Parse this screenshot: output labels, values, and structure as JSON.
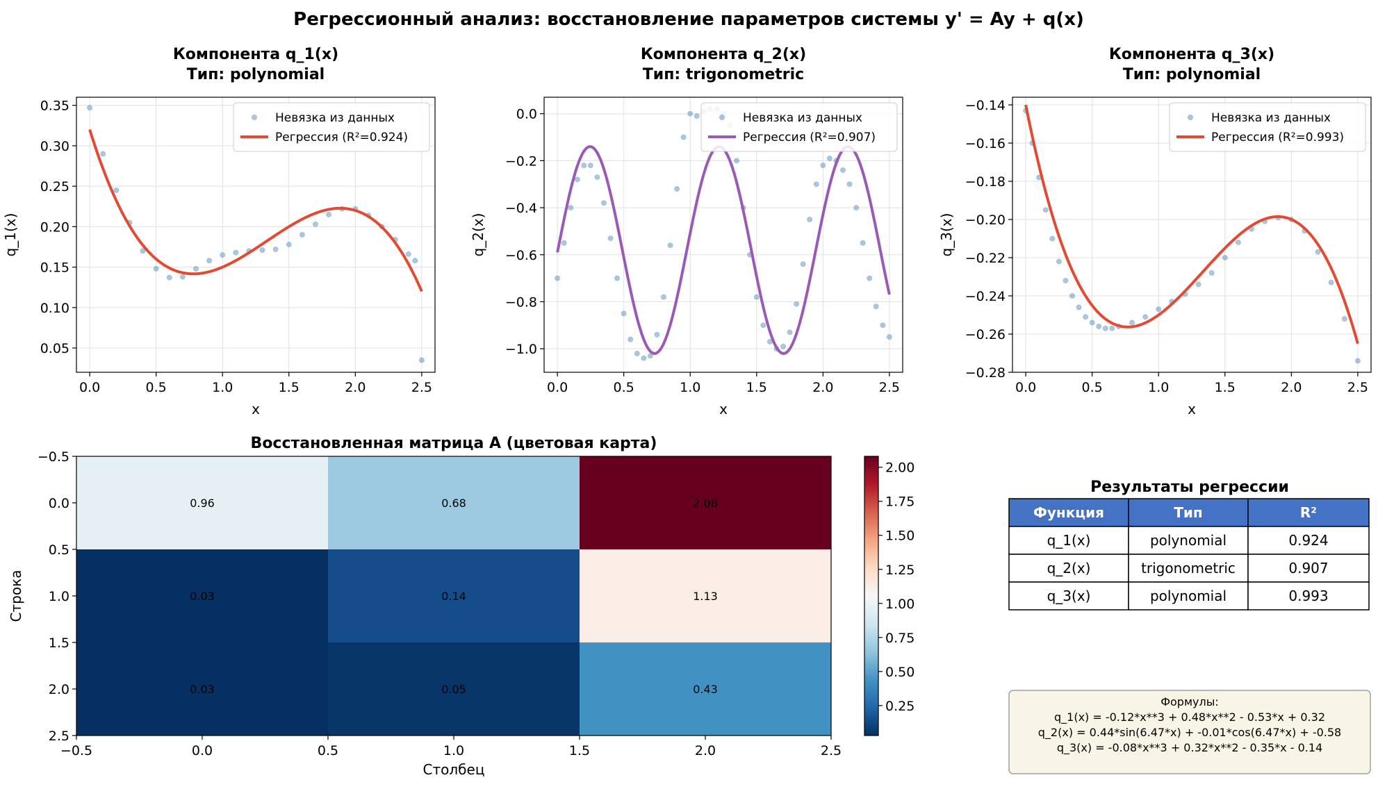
{
  "suptitle": "Регрессионный анализ: восстановление параметров системы y' = Ay + q(x)",
  "colors": {
    "data_points": "#4682b4",
    "red_fit": "#e24a33",
    "purple_fit": "#9b59b6",
    "table_header": "#4472c4",
    "formula_box": "#f8f4e6",
    "grid": "#e0e0e0"
  },
  "chart_data": [
    {
      "type": "scatter",
      "id": "q1",
      "title_line1": "Компонента q_1(x)",
      "title_line2": "Тип: polynomial",
      "xlabel": "x",
      "ylabel": "q_1(x)",
      "xlim": [
        -0.1,
        2.6
      ],
      "ylim": [
        0.02,
        0.36
      ],
      "xticks": [
        "0.0",
        "0.5",
        "1.0",
        "1.5",
        "2.0",
        "2.5"
      ],
      "xtick_values": [
        0.0,
        0.5,
        1.0,
        1.5,
        2.0,
        2.5
      ],
      "yticks": [
        "0.05",
        "0.10",
        "0.15",
        "0.20",
        "0.25",
        "0.30",
        "0.35"
      ],
      "ytick_values": [
        0.05,
        0.1,
        0.15,
        0.2,
        0.25,
        0.3,
        0.35
      ],
      "grid": true,
      "legend_position": "top-right",
      "fit_color": "#e24a33",
      "series": [
        {
          "name": "Невязка из данных",
          "kind": "scatter",
          "x": [
            0.0,
            0.1,
            0.2,
            0.3,
            0.4,
            0.5,
            0.6,
            0.7,
            0.8,
            0.9,
            1.0,
            1.1,
            1.2,
            1.3,
            1.4,
            1.5,
            1.6,
            1.7,
            1.8,
            1.9,
            2.0,
            2.1,
            2.2,
            2.3,
            2.4,
            2.45,
            2.5
          ],
          "y": [
            0.347,
            0.29,
            0.245,
            0.205,
            0.17,
            0.148,
            0.137,
            0.138,
            0.148,
            0.158,
            0.165,
            0.168,
            0.17,
            0.171,
            0.172,
            0.178,
            0.19,
            0.203,
            0.215,
            0.222,
            0.222,
            0.214,
            0.2,
            0.184,
            0.166,
            0.158,
            0.035
          ]
        },
        {
          "name": "Регрессия (R²=0.924)",
          "kind": "line",
          "coefficients": [
            -0.12,
            0.48,
            -0.53,
            0.32
          ],
          "x_range": [
            0.0,
            2.5
          ]
        }
      ]
    },
    {
      "type": "scatter",
      "id": "q2",
      "title_line1": "Компонента q_2(x)",
      "title_line2": "Тип: trigonometric",
      "xlabel": "x",
      "ylabel": "q_2(x)",
      "xlim": [
        -0.1,
        2.6
      ],
      "ylim": [
        -1.1,
        0.07
      ],
      "xticks": [
        "0.0",
        "0.5",
        "1.0",
        "1.5",
        "2.0",
        "2.5"
      ],
      "xtick_values": [
        0.0,
        0.5,
        1.0,
        1.5,
        2.0,
        2.5
      ],
      "yticks": [
        "−1.0",
        "−0.8",
        "−0.6",
        "−0.4",
        "−0.2",
        "0.0"
      ],
      "ytick_values": [
        -1.0,
        -0.8,
        -0.6,
        -0.4,
        -0.2,
        0.0
      ],
      "grid": true,
      "legend_position": "top-right",
      "fit_color": "#9b59b6",
      "series": [
        {
          "name": "Невязка из данных",
          "kind": "scatter",
          "x": [
            0.0,
            0.05,
            0.1,
            0.15,
            0.2,
            0.25,
            0.3,
            0.35,
            0.4,
            0.45,
            0.5,
            0.55,
            0.6,
            0.65,
            0.7,
            0.75,
            0.8,
            0.85,
            0.9,
            0.95,
            1.0,
            1.05,
            1.1,
            1.15,
            1.2,
            1.25,
            1.3,
            1.35,
            1.4,
            1.45,
            1.5,
            1.55,
            1.6,
            1.65,
            1.7,
            1.75,
            1.8,
            1.85,
            1.9,
            1.95,
            2.0,
            2.05,
            2.1,
            2.15,
            2.2,
            2.25,
            2.3,
            2.35,
            2.4,
            2.45,
            2.5
          ],
          "y": [
            -0.7,
            -0.55,
            -0.4,
            -0.28,
            -0.22,
            -0.22,
            -0.27,
            -0.38,
            -0.53,
            -0.7,
            -0.85,
            -0.96,
            -1.02,
            -1.04,
            -1.03,
            -0.94,
            -0.78,
            -0.56,
            -0.32,
            -0.1,
            0.0,
            -0.01,
            0.01,
            0.02,
            0.02,
            0.0,
            -0.05,
            -0.2,
            -0.4,
            -0.6,
            -0.78,
            -0.9,
            -0.97,
            -1.0,
            -0.99,
            -0.93,
            -0.81,
            -0.64,
            -0.45,
            -0.3,
            -0.22,
            -0.19,
            -0.2,
            -0.24,
            -0.3,
            -0.4,
            -0.55,
            -0.7,
            -0.82,
            -0.9,
            -0.95
          ]
        },
        {
          "name": "Регрессия (R²=0.907)",
          "kind": "line",
          "sin_coef": 0.44,
          "cos_coef": -0.01,
          "omega": 6.47,
          "offset": -0.58,
          "x_range": [
            0.0,
            2.5
          ]
        }
      ]
    },
    {
      "type": "scatter",
      "id": "q3",
      "title_line1": "Компонента q_3(x)",
      "title_line2": "Тип: polynomial",
      "xlabel": "x",
      "ylabel": "q_3(x)",
      "xlim": [
        -0.1,
        2.6
      ],
      "ylim": [
        -0.28,
        -0.136
      ],
      "xticks": [
        "0.0",
        "0.5",
        "1.0",
        "1.5",
        "2.0",
        "2.5"
      ],
      "xtick_values": [
        0.0,
        0.5,
        1.0,
        1.5,
        2.0,
        2.5
      ],
      "yticks": [
        "−0.28",
        "−0.26",
        "−0.24",
        "−0.22",
        "−0.20",
        "−0.18",
        "−0.16",
        "−0.14"
      ],
      "ytick_values": [
        -0.28,
        -0.26,
        -0.24,
        -0.22,
        -0.2,
        -0.18,
        -0.16,
        -0.14
      ],
      "grid": true,
      "legend_position": "top-right",
      "fit_color": "#e24a33",
      "series": [
        {
          "name": "Невязка из данных",
          "kind": "scatter",
          "x": [
            0.0,
            0.05,
            0.1,
            0.15,
            0.2,
            0.25,
            0.3,
            0.35,
            0.4,
            0.45,
            0.5,
            0.55,
            0.6,
            0.65,
            0.7,
            0.8,
            0.9,
            1.0,
            1.1,
            1.2,
            1.3,
            1.4,
            1.5,
            1.6,
            1.7,
            1.8,
            1.9,
            2.0,
            2.1,
            2.2,
            2.3,
            2.4,
            2.5
          ],
          "y": [
            -0.143,
            -0.16,
            -0.178,
            -0.195,
            -0.21,
            -0.222,
            -0.232,
            -0.24,
            -0.246,
            -0.251,
            -0.254,
            -0.256,
            -0.257,
            -0.257,
            -0.256,
            -0.254,
            -0.251,
            -0.247,
            -0.243,
            -0.239,
            -0.234,
            -0.228,
            -0.22,
            -0.212,
            -0.205,
            -0.201,
            -0.199,
            -0.2,
            -0.206,
            -0.217,
            -0.233,
            -0.252,
            -0.274
          ]
        },
        {
          "name": "Регрессия (R²=0.993)",
          "kind": "line",
          "coefficients": [
            -0.08,
            0.32,
            -0.35,
            -0.14
          ],
          "x_range": [
            0.0,
            2.5
          ]
        }
      ]
    },
    {
      "type": "heatmap",
      "id": "matrixA",
      "title": "Восстановленная матрица A (цветовая карта)",
      "xlabel": "Столбец",
      "ylabel": "Строка",
      "xlim": [
        -0.5,
        2.5
      ],
      "ylim": [
        2.5,
        -0.5
      ],
      "xticks": [
        "−0.5",
        "0.0",
        "0.5",
        "1.0",
        "1.5",
        "2.0",
        "2.5"
      ],
      "xtick_values": [
        -0.5,
        0.0,
        0.5,
        1.0,
        1.5,
        2.0,
        2.5
      ],
      "yticks": [
        "−0.5",
        "0.0",
        "0.5",
        "1.0",
        "1.5",
        "2.0",
        "2.5"
      ],
      "ytick_values": [
        -0.5,
        0.0,
        0.5,
        1.0,
        1.5,
        2.0,
        2.5
      ],
      "colormap": "RdBu_r",
      "vmin": 0.03,
      "vmax": 2.08,
      "colorbar_ticks": [
        "0.25",
        "0.50",
        "0.75",
        "1.00",
        "1.25",
        "1.50",
        "1.75",
        "2.00"
      ],
      "colorbar_tick_values": [
        0.25,
        0.5,
        0.75,
        1.0,
        1.25,
        1.5,
        1.75,
        2.0
      ],
      "values": [
        [
          0.96,
          0.68,
          2.08
        ],
        [
          0.03,
          0.14,
          1.13
        ],
        [
          0.03,
          0.05,
          0.43
        ]
      ],
      "labels": [
        [
          "0.96",
          "0.68",
          "2.08"
        ],
        [
          "0.03",
          "0.14",
          "1.13"
        ],
        [
          "0.03",
          "0.05",
          "0.43"
        ]
      ]
    }
  ],
  "results_table": {
    "title": "Результаты регрессии",
    "headers": [
      "Функция",
      "Тип",
      "R²"
    ],
    "rows": [
      [
        "q_1(x)",
        "polynomial",
        "0.924"
      ],
      [
        "q_2(x)",
        "trigonometric",
        "0.907"
      ],
      [
        "q_3(x)",
        "polynomial",
        "0.993"
      ]
    ]
  },
  "formulas": {
    "heading": "Формулы:",
    "lines": [
      "q_1(x) = -0.12*x**3 + 0.48*x**2 - 0.53*x + 0.32",
      "q_2(x) = 0.44*sin(6.47*x) + -0.01*cos(6.47*x) + -0.58",
      "q_3(x) = -0.08*x**3 + 0.32*x**2 - 0.35*x - 0.14"
    ]
  }
}
